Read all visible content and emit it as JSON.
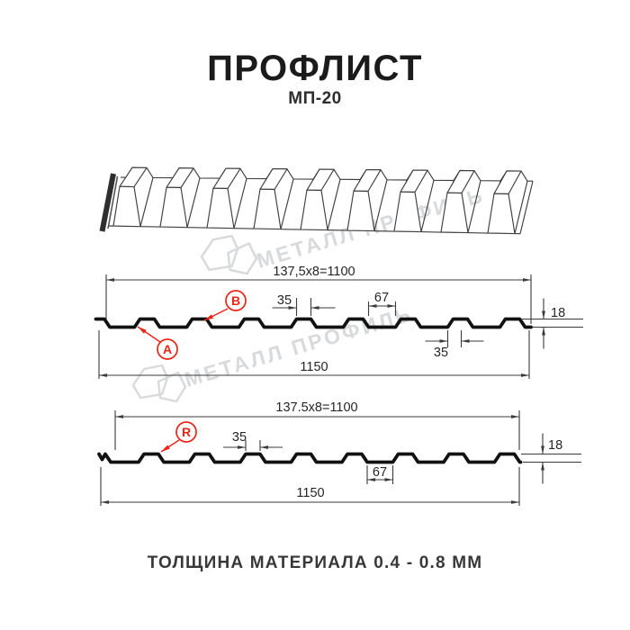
{
  "header": {
    "title": "ПРОФЛИСТ",
    "subtitle": "МП-20"
  },
  "footer": {
    "text": "ТОЛЩИНА МАТЕРИАЛА 0.4 - 0.8 ММ"
  },
  "watermark": {
    "text": "МЕТАЛЛ ПРОФИЛЬ",
    "color": "#d8dadc"
  },
  "colors": {
    "accent_red": "#ec2418",
    "dimension_line": "#3a3a3a",
    "dimension_text": "#262626",
    "profile_line": "#121212",
    "sketch_line": "#3f3f3f",
    "background": "#ffffff"
  },
  "diagram_top": {
    "view_name": "profile-cross-section-side-AB",
    "width_total_label": "137,5x8=1100",
    "width_overall_label": "1150",
    "crest_width_label": "35",
    "valley_width_label": "67",
    "height_label": "18",
    "base_width_label": "35",
    "marker_a": "A",
    "marker_b": "B"
  },
  "diagram_bottom": {
    "view_name": "profile-cross-section-side-R",
    "width_total_label": "137.5x8=1100",
    "width_overall_label": "1150",
    "crest_width_label": "35",
    "valley_width_label": "67",
    "height_label": "18",
    "marker_r": "R"
  }
}
